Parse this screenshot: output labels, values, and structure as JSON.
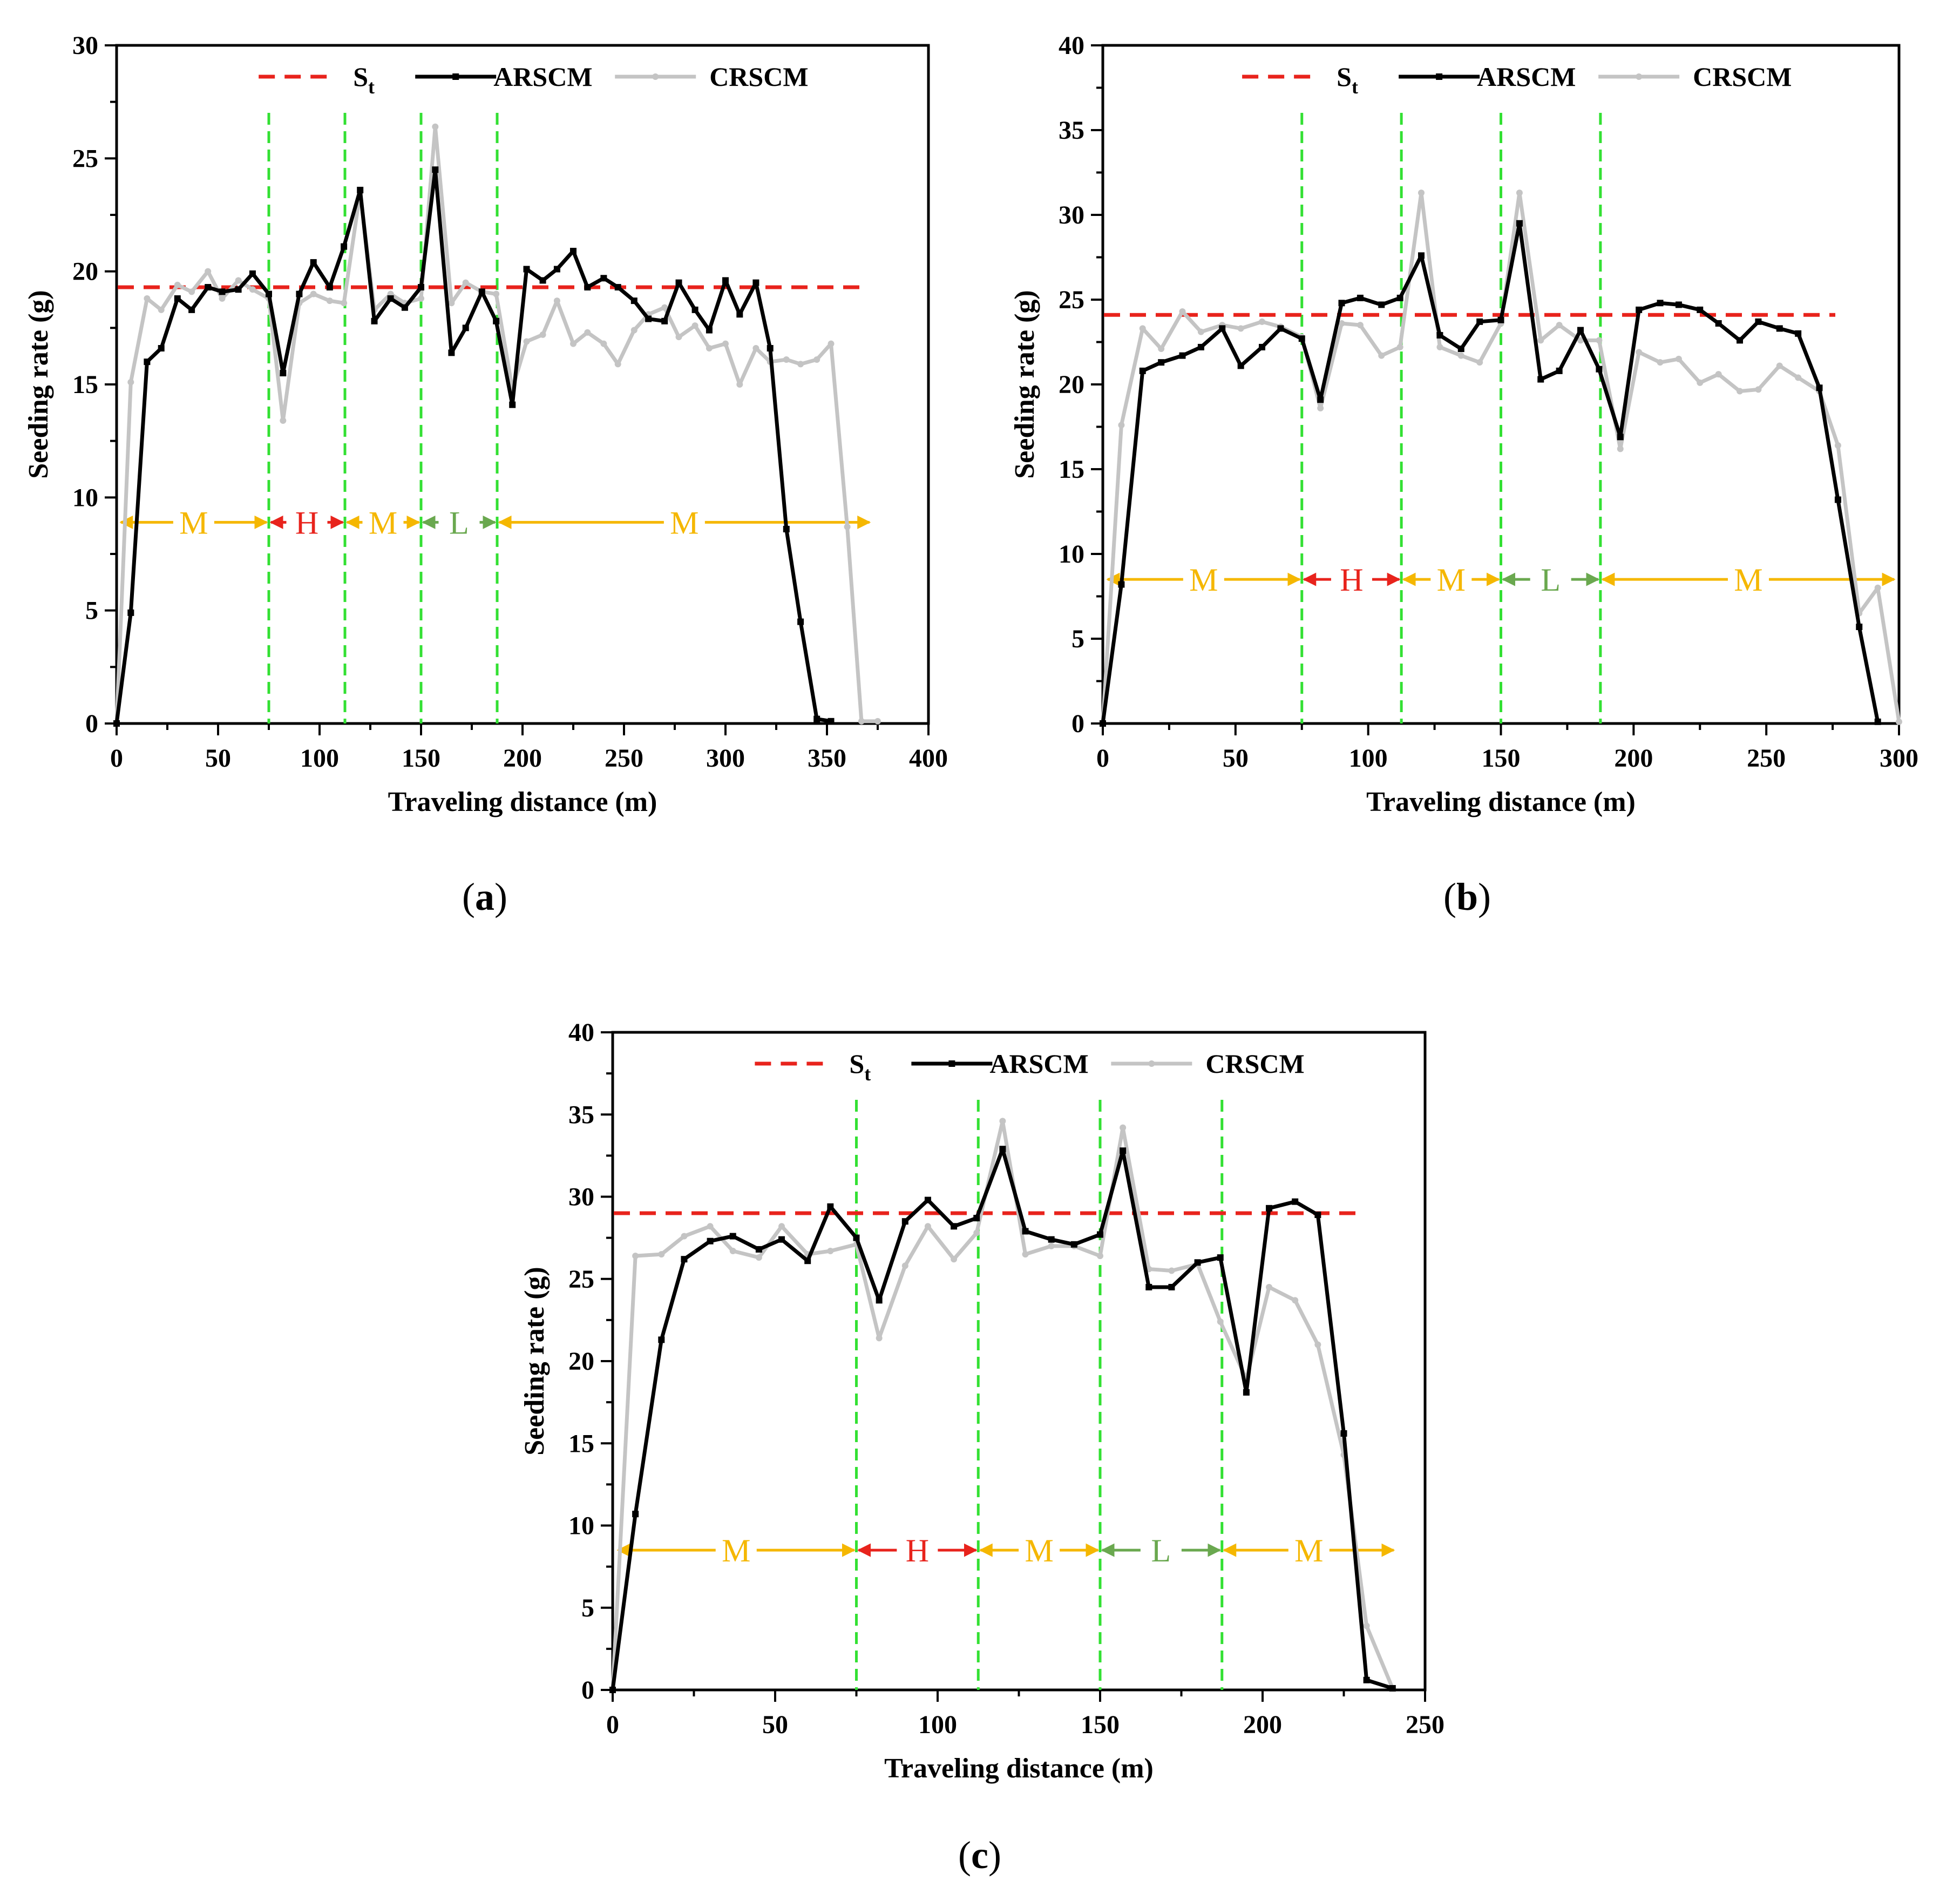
{
  "colors": {
    "target": "#e8231c",
    "arscm": "#000000",
    "crscm": "#c4c4c4",
    "divider": "#33e033",
    "zone_M": "#f5b700",
    "zone_H": "#e8231c",
    "zone_L": "#6aa84f"
  },
  "legend": {
    "target": "S",
    "target_sub": "t",
    "arscm": "ARSCM",
    "crscm": "CRSCM"
  },
  "chart_data": [
    {
      "panel": "(a)",
      "panel_letter": "a",
      "type": "line",
      "xlabel": "Traveling distance (m)",
      "ylabel": "Seeding rate (g)",
      "xlim": [
        0,
        400
      ],
      "ylim": [
        0,
        30
      ],
      "xticks": [
        0,
        50,
        100,
        150,
        200,
        250,
        300,
        350,
        400
      ],
      "yticks": [
        0,
        5,
        10,
        15,
        20,
        25,
        30
      ],
      "target": 19.3,
      "dividers": [
        75,
        112.5,
        150,
        187.5
      ],
      "zone_y": 8.9,
      "zones": [
        {
          "label": "M",
          "from": 1,
          "to": 75,
          "color": "zone_M"
        },
        {
          "label": "H",
          "from": 75,
          "to": 112.5,
          "color": "zone_H"
        },
        {
          "label": "M",
          "from": 112.5,
          "to": 150,
          "color": "zone_M"
        },
        {
          "label": "L",
          "from": 150,
          "to": 187.5,
          "color": "zone_L"
        },
        {
          "label": "M",
          "from": 187.5,
          "to": 372,
          "color": "zone_M"
        }
      ],
      "series": [
        {
          "name": "ARSCM",
          "x": [
            0,
            7,
            15,
            22,
            30,
            37,
            45,
            52,
            60,
            67,
            75,
            82,
            90,
            97,
            105,
            112,
            120,
            127,
            135,
            142,
            150,
            157,
            165,
            172,
            180,
            187,
            195,
            202,
            210,
            217,
            225,
            232,
            240,
            247,
            255,
            262,
            270,
            277,
            285,
            292,
            300,
            307,
            315,
            322,
            330,
            337,
            345,
            352
          ],
          "y": [
            0,
            4.9,
            16,
            16.6,
            18.8,
            18.3,
            19.3,
            19.1,
            19.2,
            19.9,
            19,
            15.5,
            19,
            20.4,
            19.3,
            21.1,
            23.6,
            17.8,
            18.8,
            18.4,
            19.3,
            24.5,
            16.4,
            17.5,
            19.1,
            17.8,
            14.1,
            20.1,
            19.6,
            20.1,
            20.9,
            19.3,
            19.7,
            19.3,
            18.7,
            17.9,
            17.8,
            19.5,
            18.3,
            17.4,
            19.6,
            18.1,
            19.5,
            16.6,
            8.6,
            4.5,
            0.2,
            0.1
          ]
        },
        {
          "name": "CRSCM",
          "x": [
            0,
            7,
            15,
            22,
            30,
            37,
            45,
            52,
            60,
            67,
            75,
            82,
            90,
            97,
            105,
            112,
            120,
            127,
            135,
            142,
            150,
            157,
            165,
            172,
            180,
            187,
            195,
            202,
            210,
            217,
            225,
            232,
            240,
            247,
            255,
            262,
            270,
            277,
            285,
            292,
            300,
            307,
            315,
            322,
            330,
            337,
            345,
            352,
            360,
            367,
            375
          ],
          "y": [
            0,
            15.1,
            18.8,
            18.3,
            19.4,
            19.1,
            20,
            18.8,
            19.6,
            19.2,
            18.8,
            13.4,
            18.6,
            19,
            18.7,
            18.6,
            23.5,
            18.3,
            19,
            18.6,
            18.8,
            26.4,
            18.6,
            19.5,
            19.1,
            19,
            14.8,
            16.9,
            17.2,
            18.7,
            16.8,
            17.3,
            16.8,
            15.9,
            17.4,
            18.1,
            18.4,
            17.1,
            17.6,
            16.6,
            16.8,
            15,
            16.6,
            16,
            16.1,
            15.9,
            16.1,
            16.8,
            8.7,
            0.1,
            0.1
          ]
        }
      ]
    },
    {
      "panel": "(b)",
      "panel_letter": "b",
      "type": "line",
      "xlabel": "Traveling distance (m)",
      "ylabel": "Seeding rate (g)",
      "xlim": [
        0,
        300
      ],
      "ylim": [
        0,
        40
      ],
      "xticks": [
        0,
        50,
        100,
        150,
        200,
        250,
        300
      ],
      "yticks": [
        0,
        5,
        10,
        15,
        20,
        25,
        30,
        35,
        40
      ],
      "target": 24.1,
      "dividers": [
        75,
        112.5,
        150,
        187.5
      ],
      "zone_y": 8.5,
      "zones": [
        {
          "label": "M",
          "from": 1,
          "to": 75,
          "color": "zone_M"
        },
        {
          "label": "H",
          "from": 75,
          "to": 112.5,
          "color": "zone_H"
        },
        {
          "label": "M",
          "from": 112.5,
          "to": 150,
          "color": "zone_M"
        },
        {
          "label": "L",
          "from": 150,
          "to": 187.5,
          "color": "zone_L"
        },
        {
          "label": "M",
          "from": 187.5,
          "to": 299,
          "color": "zone_M"
        }
      ],
      "series": [
        {
          "name": "ARSCM",
          "x": [
            0,
            7,
            15,
            22,
            30,
            37,
            45,
            52,
            60,
            67,
            75,
            82,
            90,
            97,
            105,
            112,
            120,
            127,
            135,
            142,
            150,
            157,
            165,
            172,
            180,
            187,
            195,
            202,
            210,
            217,
            225,
            232,
            240,
            247,
            255,
            262,
            270,
            277,
            285,
            292
          ],
          "y": [
            0,
            8.2,
            20.8,
            21.3,
            21.7,
            22.2,
            23.3,
            21.1,
            22.2,
            23.3,
            22.7,
            19.1,
            24.8,
            25.1,
            24.7,
            25.1,
            27.6,
            22.9,
            22.1,
            23.7,
            23.8,
            29.5,
            20.3,
            20.8,
            23.2,
            20.9,
            16.9,
            24.4,
            24.8,
            24.7,
            24.4,
            23.6,
            22.6,
            23.7,
            23.3,
            23,
            19.8,
            13.2,
            5.7,
            0.1
          ]
        },
        {
          "name": "CRSCM",
          "x": [
            0,
            7,
            15,
            22,
            30,
            37,
            45,
            52,
            60,
            67,
            75,
            82,
            90,
            97,
            105,
            112,
            120,
            127,
            135,
            142,
            150,
            157,
            165,
            172,
            180,
            187,
            195,
            202,
            210,
            217,
            225,
            232,
            240,
            247,
            255,
            262,
            270,
            277,
            285,
            292,
            300
          ],
          "y": [
            0,
            17.6,
            23.3,
            22.1,
            24.3,
            23.1,
            23.5,
            23.3,
            23.7,
            23.4,
            22.8,
            18.6,
            23.6,
            23.5,
            21.7,
            22.2,
            31.3,
            22.2,
            21.7,
            21.3,
            23.6,
            31.3,
            22.6,
            23.5,
            22.6,
            22.6,
            16.2,
            21.9,
            21.3,
            21.5,
            20.1,
            20.6,
            19.6,
            19.7,
            21.1,
            20.4,
            19.6,
            16.4,
            6.5,
            8,
            0.1
          ]
        }
      ]
    },
    {
      "panel": "(c)",
      "panel_letter": "c",
      "type": "line",
      "xlabel": "Traveling distance (m)",
      "ylabel": "Seeding rate (g)",
      "xlim": [
        0,
        250
      ],
      "ylim": [
        0,
        40
      ],
      "xticks": [
        0,
        50,
        100,
        150,
        200,
        250
      ],
      "yticks": [
        0,
        5,
        10,
        15,
        20,
        25,
        30,
        35,
        40
      ],
      "target": 29,
      "dividers": [
        75,
        112.5,
        150,
        187.5
      ],
      "zone_y": 8.5,
      "zones": [
        {
          "label": "M",
          "from": 1,
          "to": 75,
          "color": "zone_M"
        },
        {
          "label": "H",
          "from": 75,
          "to": 112.5,
          "color": "zone_H"
        },
        {
          "label": "M",
          "from": 112.5,
          "to": 150,
          "color": "zone_M"
        },
        {
          "label": "L",
          "from": 150,
          "to": 187.5,
          "color": "zone_L"
        },
        {
          "label": "M",
          "from": 187.5,
          "to": 241,
          "color": "zone_M"
        }
      ],
      "series": [
        {
          "name": "ARSCM",
          "x": [
            0,
            7,
            15,
            22,
            30,
            37,
            45,
            52,
            60,
            67,
            75,
            82,
            90,
            97,
            105,
            112,
            120,
            127,
            135,
            142,
            150,
            157,
            165,
            172,
            180,
            187,
            195,
            202,
            210,
            217,
            225,
            232,
            240
          ],
          "y": [
            0,
            10.7,
            21.3,
            26.2,
            27.3,
            27.6,
            26.8,
            27.4,
            26.1,
            29.4,
            27.5,
            23.7,
            28.5,
            29.8,
            28.2,
            28.7,
            32.9,
            27.9,
            27.4,
            27.1,
            27.7,
            32.8,
            24.5,
            24.5,
            26,
            26.3,
            18.1,
            29.3,
            29.7,
            28.9,
            15.6,
            0.6,
            0.1
          ]
        },
        {
          "name": "CRSCM",
          "x": [
            0,
            7,
            15,
            22,
            30,
            37,
            45,
            52,
            60,
            67,
            75,
            82,
            90,
            97,
            105,
            112,
            120,
            127,
            135,
            142,
            150,
            157,
            165,
            172,
            180,
            187,
            195,
            202,
            210,
            217,
            225,
            232,
            240
          ],
          "y": [
            0,
            26.4,
            26.5,
            27.6,
            28.2,
            26.7,
            26.3,
            28.2,
            26.5,
            26.7,
            27.1,
            21.4,
            25.8,
            28.2,
            26.2,
            27.8,
            34.6,
            26.5,
            27,
            27,
            26.4,
            34.2,
            25.6,
            25.5,
            25.9,
            22.4,
            18.9,
            24.5,
            23.7,
            21,
            14.3,
            3.9,
            0.1
          ]
        }
      ]
    }
  ]
}
